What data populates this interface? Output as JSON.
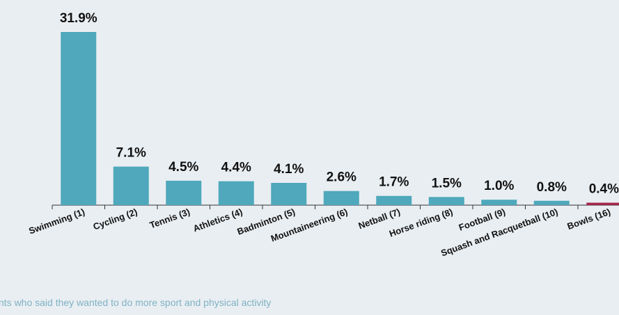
{
  "chart_data": {
    "type": "bar",
    "title": "",
    "xlabel": "",
    "ylabel": "",
    "categories": [
      "Swimming (1)",
      "Cycling (2)",
      "Tennis (3)",
      "Athletics (4)",
      "Badminton (5)",
      "Mountaineering (6)",
      "Netball (7)",
      "Horse riding (8)",
      "Football (9)",
      "Squash and Racquetball (10)",
      "Bowls (16)"
    ],
    "values": [
      31.9,
      7.1,
      4.5,
      4.4,
      4.1,
      2.6,
      1.7,
      1.5,
      1.0,
      0.8,
      0.4
    ],
    "value_labels": [
      "31.9%",
      "7.1%",
      "4.5%",
      "4.4%",
      "4.1%",
      "2.6%",
      "1.7%",
      "1.5%",
      "1.0%",
      "0.8%",
      "0.4%"
    ],
    "ylim": [
      0,
      32
    ],
    "grid": false,
    "bar_color": "#4fa8bb",
    "highlight_color": "#a3264a",
    "highlight_index": 10
  },
  "footnote": "nts who said they wanted to do more sport and physical activity"
}
